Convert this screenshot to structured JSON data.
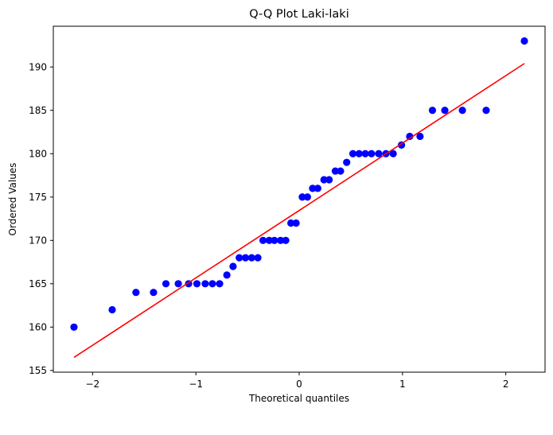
{
  "chart_data": {
    "type": "scatter",
    "title": "Q-Q Plot Laki-laki",
    "xlabel": "Theoretical quantiles",
    "ylabel": "Ordered Values",
    "xlim": [
      -2.38,
      2.38
    ],
    "ylim": [
      154.8,
      194.7
    ],
    "xticks": [
      -2,
      -1,
      0,
      1,
      2
    ],
    "xtick_labels": [
      "−2",
      "−1",
      "0",
      "1",
      "2"
    ],
    "yticks": [
      155,
      160,
      165,
      170,
      175,
      180,
      185,
      190
    ],
    "ytick_labels": [
      "155",
      "160",
      "165",
      "170",
      "175",
      "180",
      "185",
      "190"
    ],
    "grid": false,
    "colors": {
      "points": "#0000ff",
      "fit_line": "#ff0000"
    },
    "fit_line": {
      "x": [
        -2.18,
        2.18
      ],
      "y": [
        156.5,
        190.4
      ]
    },
    "points": {
      "x": [
        -2.18,
        -1.81,
        -1.58,
        -1.41,
        -1.29,
        -1.17,
        -1.07,
        -0.99,
        -0.91,
        -0.84,
        -0.77,
        -0.7,
        -0.64,
        -0.58,
        -0.52,
        -0.46,
        -0.4,
        -0.35,
        -0.29,
        -0.24,
        -0.18,
        -0.13,
        -0.08,
        -0.03,
        0.03,
        0.08,
        0.13,
        0.18,
        0.24,
        0.29,
        0.35,
        0.4,
        0.46,
        0.52,
        0.58,
        0.64,
        0.7,
        0.77,
        0.84,
        0.91,
        0.99,
        1.07,
        1.17,
        1.29,
        1.41,
        1.58,
        1.81,
        2.18
      ],
      "y": [
        160,
        162,
        164,
        164,
        165,
        165,
        165,
        165,
        165,
        165,
        165,
        166,
        167,
        168,
        168,
        168,
        168,
        170,
        170,
        170,
        170,
        170,
        172,
        172,
        175,
        175,
        176,
        176,
        177,
        177,
        178,
        178,
        179,
        180,
        180,
        180,
        180,
        180,
        180,
        180,
        181,
        182,
        182,
        185,
        185,
        185,
        185,
        193
      ]
    }
  }
}
